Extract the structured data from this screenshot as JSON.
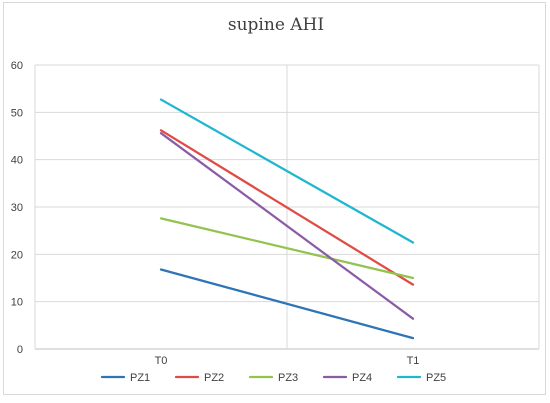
{
  "chart_data": {
    "type": "line",
    "title": "supine AHI",
    "xlabel": "",
    "ylabel": "",
    "categories": [
      "T0",
      "T1"
    ],
    "ylim": [
      0,
      60
    ],
    "yticks": [
      0,
      10,
      20,
      30,
      40,
      50,
      60
    ],
    "grid": true,
    "legend_position": "bottom",
    "series": [
      {
        "name": "PZ1",
        "values": [
          16.8,
          2.3
        ],
        "color": "#2E75B6"
      },
      {
        "name": "PZ2",
        "values": [
          46.2,
          13.6
        ],
        "color": "#E04B43"
      },
      {
        "name": "PZ3",
        "values": [
          27.6,
          15.0
        ],
        "color": "#92C34F"
      },
      {
        "name": "PZ4",
        "values": [
          45.6,
          6.4
        ],
        "color": "#8B5BA6"
      },
      {
        "name": "PZ5",
        "values": [
          52.7,
          22.5
        ],
        "color": "#1EB7CF"
      }
    ]
  }
}
